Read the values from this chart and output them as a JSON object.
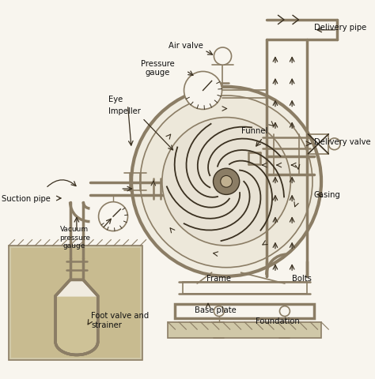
{
  "bg_color": "#f8f5ee",
  "line_color": "#8B7D65",
  "dark_line": "#3a3020",
  "water_color": "#c8b87a",
  "ground_color": "#c8c0a0",
  "ground_fill": "#d0c8a8",
  "text_color": "#111111",
  "labels": {
    "pressure_gauge": "Pressure\ngauge",
    "delivery_pipe": "Delivery pipe",
    "delivery_valve": "Delivery valve",
    "air_valve": "Air valve",
    "eye": "Eye",
    "impeller": "Impeller",
    "funnel": "Funnel",
    "casing": "Casing",
    "suction_pipe": "Suction pipe",
    "vacuum_gauge": "Vacuum\npressure\ngauge",
    "frame": "Frame",
    "bolts": "Bolts",
    "base_plate": "Base plate",
    "foundation": "Foundation",
    "foot_valve": "Foot valve and\nstrainer"
  },
  "figsize": [
    4.74,
    4.81
  ],
  "dpi": 100
}
